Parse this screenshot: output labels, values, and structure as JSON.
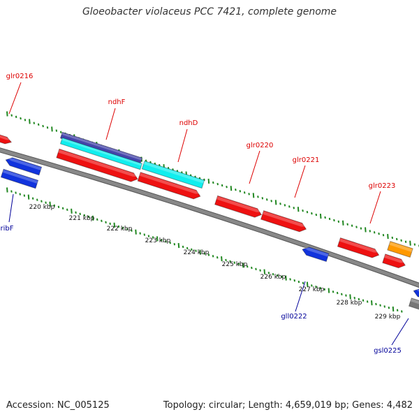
{
  "title": "Gloeobacter violaceus PCC 7421, complete genome",
  "footer": {
    "accession": "Accession: NC_005125",
    "topology": "Topology: circular; Length: 4,659,019 bp; Genes: 4,482"
  },
  "colors": {
    "forward_label": "#dd0000",
    "reverse_label": "#000099",
    "red_feature": "#ee1111",
    "blue_feature": "#1133dd",
    "cyan_feature": "#11eeee",
    "purple_feature": "#4444aa",
    "orange_feature": "#ff9900",
    "gray_feature": "#777777",
    "backbone": "#888888",
    "dotted_track": "#228822"
  },
  "scale_labels": [
    "220 kbp",
    "221 kbp",
    "222 kbp",
    "223 kbp",
    "224 kbp",
    "225 kbp",
    "226 kbp",
    "227 kbp",
    "228 kbp",
    "229 kbp"
  ],
  "gene_labels": [
    {
      "text": "glr0216",
      "strand": "forward"
    },
    {
      "text": "ndhF",
      "strand": "forward"
    },
    {
      "text": "ndhD",
      "strand": "forward"
    },
    {
      "text": "glr0220",
      "strand": "forward"
    },
    {
      "text": "glr0221",
      "strand": "forward"
    },
    {
      "text": "glr0223",
      "strand": "forward"
    },
    {
      "text": "ribF",
      "strand": "reverse"
    },
    {
      "text": "gll0222",
      "strand": "reverse"
    },
    {
      "text": "gsl0225",
      "strand": "reverse"
    }
  ]
}
